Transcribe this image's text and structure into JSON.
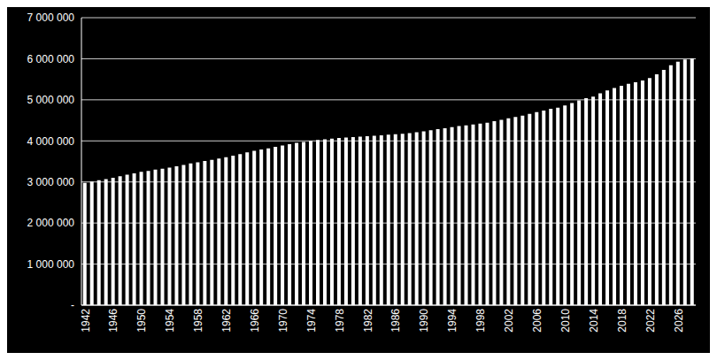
{
  "chart_data": {
    "type": "bar",
    "categories": [
      "1942",
      null,
      null,
      null,
      "1946",
      null,
      null,
      null,
      "1950",
      null,
      null,
      null,
      "1954",
      null,
      null,
      null,
      "1958",
      null,
      null,
      null,
      "1962",
      null,
      null,
      null,
      "1966",
      null,
      null,
      null,
      "1970",
      null,
      null,
      null,
      "1974",
      null,
      null,
      null,
      "1978",
      null,
      null,
      null,
      "1982",
      null,
      null,
      null,
      "1986",
      null,
      null,
      null,
      "1990",
      null,
      null,
      null,
      "1994",
      null,
      null,
      null,
      "1998",
      null,
      null,
      null,
      "2002",
      null,
      null,
      null,
      "2006",
      null,
      null,
      null,
      "2010",
      null,
      null,
      null,
      "2014",
      null,
      null,
      null,
      "2018",
      null,
      null,
      null,
      "2022",
      null,
      null,
      null,
      "2026",
      null,
      null
    ],
    "values": [
      2980000,
      3010000,
      3040000,
      3070000,
      3100000,
      3140000,
      3175000,
      3210000,
      3245000,
      3270000,
      3300000,
      3325000,
      3350000,
      3380000,
      3415000,
      3450000,
      3480000,
      3510000,
      3540000,
      3570000,
      3600000,
      3640000,
      3680000,
      3720000,
      3760000,
      3790000,
      3820000,
      3855000,
      3890000,
      3920000,
      3950000,
      3975000,
      4000000,
      4020000,
      4040000,
      4055000,
      4070000,
      4080000,
      4090000,
      4105000,
      4115000,
      4125000,
      4135000,
      4150000,
      4160000,
      4175000,
      4190000,
      4210000,
      4235000,
      4260000,
      4285000,
      4310000,
      4335000,
      4360000,
      4380000,
      4400000,
      4420000,
      4445000,
      4480000,
      4515000,
      4550000,
      4580000,
      4615000,
      4660000,
      4700000,
      4740000,
      4780000,
      4810000,
      4860000,
      4920000,
      4985000,
      5040000,
      5080000,
      5160000,
      5230000,
      5290000,
      5340000,
      5390000,
      5430000,
      5470000,
      5530000,
      5620000,
      5730000,
      5840000,
      5930000,
      5980000,
      6010000
    ],
    "color": "#ffffff",
    "ylim": [
      0,
      7000000
    ],
    "yticks": [
      {
        "value": 0,
        "label": "-"
      },
      {
        "value": 1000000,
        "label": "1 000 000"
      },
      {
        "value": 2000000,
        "label": "2 000 000"
      },
      {
        "value": 3000000,
        "label": "3 000 000"
      },
      {
        "value": 4000000,
        "label": "4 000 000"
      },
      {
        "value": 5000000,
        "label": "5 000 000"
      },
      {
        "value": 6000000,
        "label": "6 000 000"
      },
      {
        "value": 7000000,
        "label": "7 000 000"
      }
    ],
    "grid": true
  }
}
